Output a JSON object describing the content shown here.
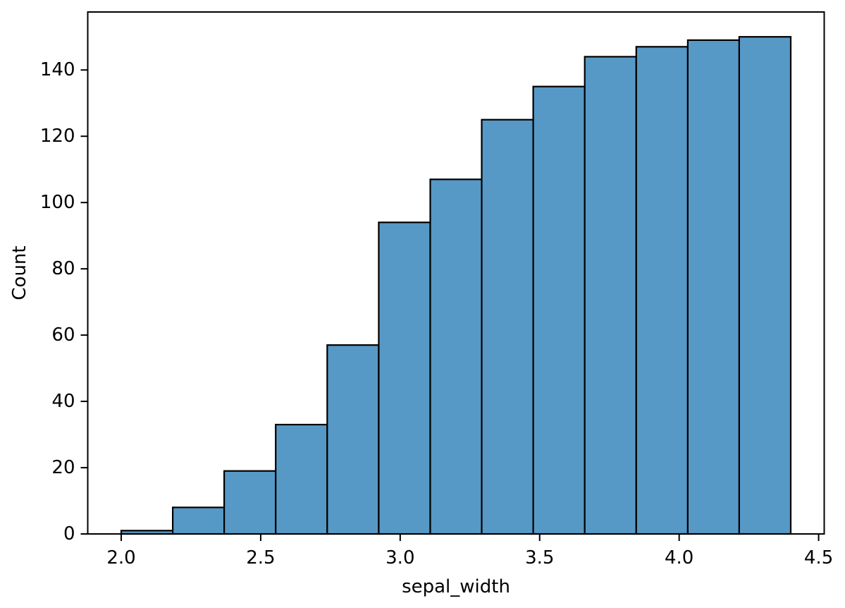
{
  "figure": {
    "background": "#ffffff"
  },
  "chart_data": {
    "type": "bar",
    "subtype": "cumulative_histogram",
    "title": "",
    "xlabel": "sepal_width",
    "ylabel": "Count",
    "bin_edges": [
      2.0,
      2.1846,
      2.3692,
      2.5538,
      2.7385,
      2.9231,
      3.1077,
      3.2923,
      3.4769,
      3.6615,
      3.8462,
      4.0308,
      4.2154,
      4.4
    ],
    "values": [
      1,
      8,
      19,
      33,
      57,
      94,
      107,
      125,
      135,
      144,
      147,
      149,
      150
    ],
    "xlim": [
      1.88,
      4.52
    ],
    "ylim": [
      0,
      157.5
    ],
    "xticks": [
      2.0,
      2.5,
      3.0,
      3.5,
      4.0,
      4.5
    ],
    "xtick_labels": [
      "2.0",
      "2.5",
      "3.0",
      "3.5",
      "4.0",
      "4.5"
    ],
    "yticks": [
      0,
      20,
      40,
      60,
      80,
      100,
      120,
      140
    ],
    "ytick_labels": [
      "0",
      "20",
      "40",
      "60",
      "80",
      "100",
      "120",
      "140"
    ],
    "grid": false,
    "legend": null,
    "colors": {
      "bar_fill": "#5799C6",
      "bar_edge": "#000000",
      "spine": "#000000",
      "text": "#000000"
    }
  }
}
